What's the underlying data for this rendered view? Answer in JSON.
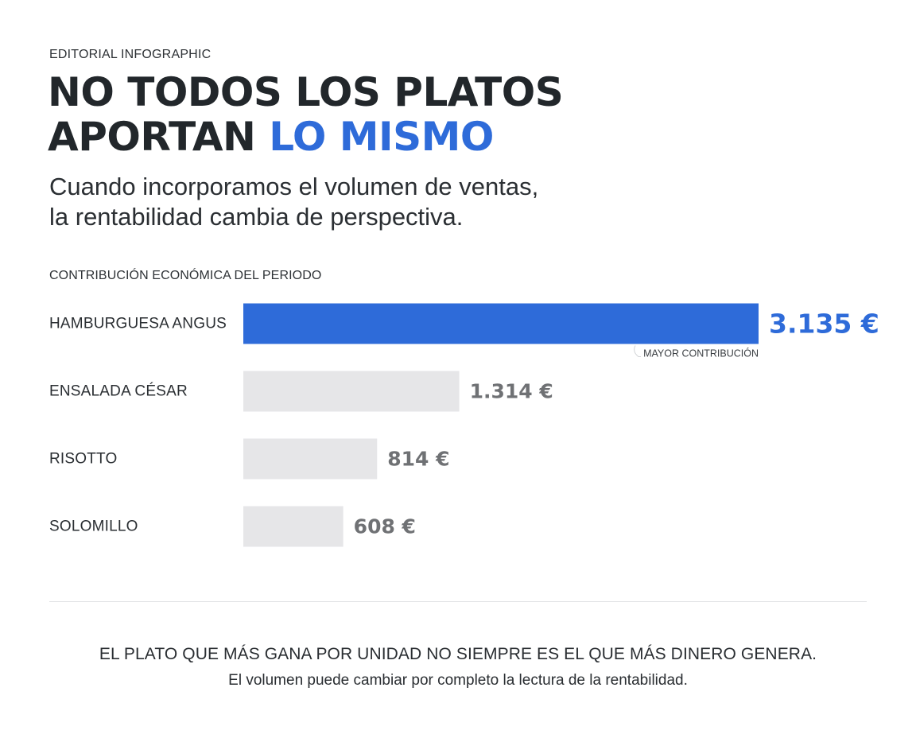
{
  "header": {
    "eyebrow": "EDITORIAL INFOGRAPHIC",
    "title_line1": "NO TODOS LOS PLATOS",
    "title_line2_dark": "APORTAN ",
    "title_line2_accent": "LO MISMO",
    "subtitle_line1": "Cuando incorporamos el volumen de ventas,",
    "subtitle_line2": "la rentabilidad cambia de perspectiva."
  },
  "chart_data": {
    "type": "bar",
    "orientation": "horizontal",
    "title": "CONTRIBUCIÓN ECONÓMICA DEL PERIODO",
    "categories": [
      "HAMBURGUESA ANGUS",
      "ENSALADA CÉSAR",
      "RISOTTO",
      "SOLOMILLO"
    ],
    "values": [
      3135,
      1314,
      814,
      608
    ],
    "value_labels": [
      "3.135 €",
      "1.314 €",
      "814 €",
      "608 €"
    ],
    "unit": "€",
    "highlight_index": 0,
    "annotation": "MAYOR CONTRIBUCIÓN",
    "grid": false,
    "legend": "none"
  },
  "colors": {
    "accent": "#2e6bd9",
    "bar_muted": "#e6e6e8",
    "text_dark": "#22272b",
    "value_muted": "#6f7174"
  },
  "footer": {
    "main": "EL PLATO QUE MÁS GANA POR UNIDAD NO SIEMPRE ES EL QUE MÁS DINERO GENERA.",
    "sub": "El volumen puede cambiar por completo la lectura de la rentabilidad."
  }
}
